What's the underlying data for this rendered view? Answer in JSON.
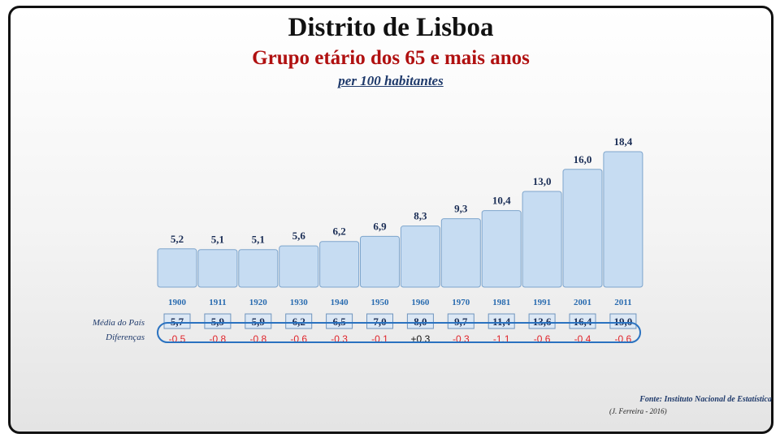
{
  "header": {
    "title": "Distrito de Lisboa",
    "subtitle": "Grupo etário dos 65 e mais anos",
    "unit": "per 100 habitantes"
  },
  "rows": {
    "national_label": "Média do País",
    "diff_label": "Diferenças"
  },
  "footer": {
    "source": "Fonte: Instituto Nacional de Estatística",
    "author": "(J. Ferreira - 2016)"
  },
  "colors": {
    "negative": "#e0242b",
    "positive": "#111111",
    "bar_fill": "#c6dcf2",
    "title_red": "#b01010"
  },
  "chart_data": {
    "type": "bar",
    "categories": [
      "1900",
      "1911",
      "1920",
      "1930",
      "1940",
      "1950",
      "1960",
      "1970",
      "1981",
      "1991",
      "2001",
      "2011"
    ],
    "values": [
      5.2,
      5.1,
      5.1,
      5.6,
      6.2,
      6.9,
      8.3,
      9.3,
      10.4,
      13.0,
      16.0,
      18.4
    ],
    "value_labels": [
      "5,2",
      "5,1",
      "5,1",
      "5,6",
      "6,2",
      "6,9",
      "8,3",
      "9,3",
      "10,4",
      "13,0",
      "16,0",
      "18,4"
    ],
    "national_values": [
      5.7,
      5.9,
      5.9,
      6.2,
      6.5,
      7.0,
      8.0,
      9.7,
      11.4,
      13.6,
      16.4,
      19.0
    ],
    "national_labels": [
      "5,7",
      "5,9",
      "5,9",
      "6,2",
      "6,5",
      "7,0",
      "8,0",
      "9,7",
      "11,4",
      "13,6",
      "16,4",
      "19,0"
    ],
    "differences": [
      -0.5,
      -0.8,
      -0.8,
      -0.6,
      -0.3,
      -0.1,
      0.3,
      -0.3,
      -1.1,
      -0.6,
      -0.4,
      -0.6
    ],
    "difference_labels": [
      "-0.5",
      "-0.8",
      "-0.8",
      "-0.6",
      "-0.3",
      "-0.1",
      "+0.3",
      "-0.3",
      "-1.1",
      "-0.6",
      "-0.4",
      "-0.6"
    ],
    "title": "Distrito de Lisboa",
    "subtitle": "Grupo etário dos 65 e mais anos",
    "ylabel": "per 100 habitantes",
    "ylim": [
      0,
      20
    ],
    "grid": false,
    "legend": "none"
  }
}
